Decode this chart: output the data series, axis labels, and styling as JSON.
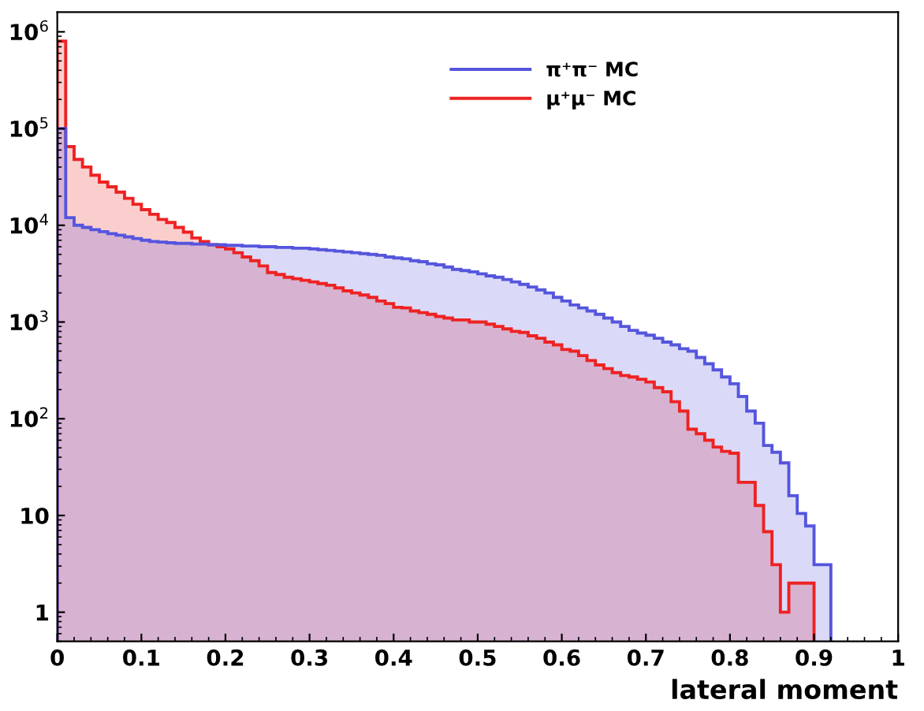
{
  "chart_data": {
    "type": "histogram",
    "xlabel": "lateral moment",
    "bins": [
      0,
      0.01,
      0.02,
      0.03,
      0.04,
      0.05,
      0.06,
      0.07,
      0.08,
      0.09,
      0.1,
      0.11,
      0.12,
      0.13,
      0.14,
      0.15,
      0.16,
      0.17,
      0.18,
      0.19,
      0.2,
      0.21,
      0.22,
      0.23,
      0.24,
      0.25,
      0.26,
      0.27,
      0.28,
      0.29,
      0.3,
      0.31,
      0.32,
      0.33,
      0.34,
      0.35,
      0.36,
      0.37,
      0.38,
      0.39,
      0.4,
      0.41,
      0.42,
      0.43,
      0.44,
      0.45,
      0.46,
      0.47,
      0.48,
      0.49,
      0.5,
      0.51,
      0.52,
      0.53,
      0.54,
      0.55,
      0.56,
      0.57,
      0.58,
      0.59,
      0.6,
      0.61,
      0.62,
      0.63,
      0.64,
      0.65,
      0.66,
      0.67,
      0.68,
      0.69,
      0.7,
      0.71,
      0.72,
      0.73,
      0.74,
      0.75,
      0.76,
      0.77,
      0.78,
      0.79,
      0.8,
      0.81,
      0.82,
      0.83,
      0.84,
      0.85,
      0.86,
      0.87,
      0.88,
      0.89,
      0.9,
      0.91,
      0.92
    ],
    "series": [
      {
        "name": "π⁺π⁻ MC",
        "color": "#5555dd",
        "values": [
          100000,
          12000,
          10000,
          9500,
          9000,
          8600,
          8200,
          7900,
          7600,
          7300,
          7000,
          6800,
          6700,
          6600,
          6500,
          6500,
          6400,
          6400,
          6300,
          6300,
          6200,
          6200,
          6100,
          6100,
          6000,
          6000,
          5900,
          5900,
          5800,
          5800,
          5700,
          5600,
          5500,
          5400,
          5300,
          5200,
          5100,
          5000,
          4900,
          4700,
          4600,
          4500,
          4300,
          4200,
          4000,
          3900,
          3700,
          3500,
          3400,
          3300,
          3150,
          3000,
          2900,
          2750,
          2600,
          2450,
          2300,
          2150,
          2000,
          1800,
          1650,
          1500,
          1400,
          1300,
          1200,
          1100,
          1000,
          900,
          820,
          770,
          730,
          680,
          620,
          580,
          530,
          500,
          430,
          370,
          320,
          270,
          230,
          170,
          120,
          90,
          53,
          45,
          35,
          16,
          10.5,
          7.8,
          3.1,
          3.1
        ]
      },
      {
        "name": "μ⁺μ⁻ MC",
        "color": "#ee2222",
        "bins": [
          0,
          0.01,
          0.02,
          0.03,
          0.04,
          0.05,
          0.06,
          0.07,
          0.08,
          0.09,
          0.1,
          0.11,
          0.12,
          0.13,
          0.14,
          0.15,
          0.16,
          0.17,
          0.18,
          0.19,
          0.2,
          0.21,
          0.22,
          0.23,
          0.24,
          0.25,
          0.26,
          0.27,
          0.28,
          0.29,
          0.3,
          0.31,
          0.32,
          0.33,
          0.34,
          0.35,
          0.36,
          0.37,
          0.38,
          0.39,
          0.4,
          0.41,
          0.42,
          0.43,
          0.44,
          0.45,
          0.46,
          0.47,
          0.48,
          0.49,
          0.5,
          0.51,
          0.52,
          0.53,
          0.54,
          0.55,
          0.56,
          0.57,
          0.58,
          0.59,
          0.6,
          0.61,
          0.62,
          0.63,
          0.64,
          0.65,
          0.66,
          0.67,
          0.68,
          0.69,
          0.7,
          0.71,
          0.72,
          0.73,
          0.74,
          0.75,
          0.76,
          0.77,
          0.78,
          0.79,
          0.8,
          0.81,
          0.82,
          0.83,
          0.84,
          0.85,
          0.86,
          0.87,
          0.88,
          0.89,
          0.9
        ],
        "values": [
          800000,
          65000,
          48000,
          40000,
          33000,
          28000,
          25000,
          22000,
          19000,
          16500,
          14500,
          13000,
          11500,
          10700,
          9500,
          8500,
          7400,
          6800,
          6300,
          6000,
          5700,
          5200,
          4700,
          4300,
          3800,
          3250,
          3100,
          2900,
          2800,
          2700,
          2600,
          2500,
          2400,
          2250,
          2100,
          2000,
          1900,
          1800,
          1650,
          1550,
          1420,
          1400,
          1300,
          1250,
          1200,
          1140,
          1100,
          1050,
          1050,
          1000,
          1000,
          950,
          900,
          850,
          800,
          780,
          720,
          680,
          620,
          580,
          520,
          500,
          450,
          400,
          360,
          330,
          300,
          280,
          270,
          256,
          240,
          210,
          190,
          150,
          120,
          78,
          70,
          60,
          51,
          46,
          44,
          22,
          22,
          12.7,
          6.8,
          3.1,
          1,
          2,
          2,
          2
        ]
      }
    ],
    "log": "y",
    "xlim": [
      0,
      1
    ],
    "ylim": [
      0.5,
      1600000
    ],
    "xticks": [
      0,
      0.1,
      0.2,
      0.3,
      0.4,
      0.5,
      0.6,
      0.7,
      0.8,
      0.9,
      1
    ],
    "yticks": [
      1,
      10,
      {
        "value": 100,
        "label": "10$^{2}$"
      },
      {
        "value": 1000,
        "label": "10$^{3}$"
      },
      {
        "value": 10000,
        "label": "10$^{4}$"
      },
      {
        "value": 100000,
        "label": "10$^{5}$"
      },
      {
        "value": 1000000,
        "label": "10$^{6}$"
      }
    ],
    "grid": false,
    "legend": "top"
  }
}
